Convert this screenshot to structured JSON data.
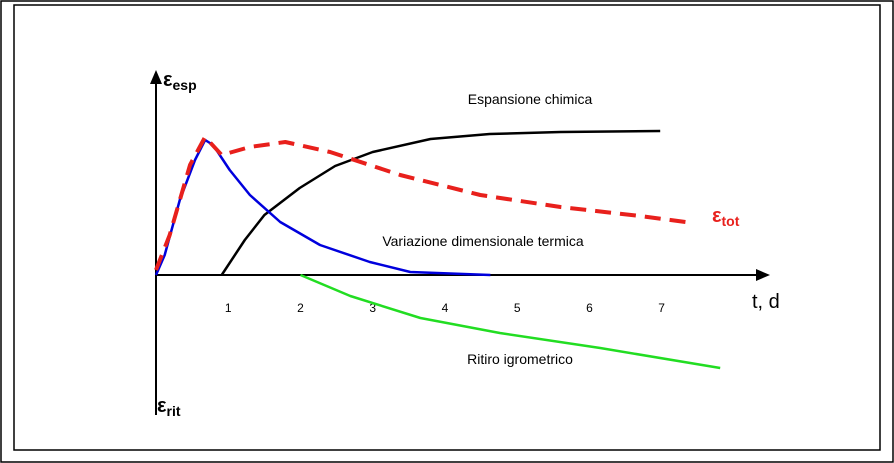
{
  "chart_data": {
    "type": "line",
    "y_label_top": {
      "main": "ε",
      "sub": "esp"
    },
    "y_label_bottom": {
      "main": "ε",
      "sub": "rit"
    },
    "x_label": "t, d",
    "xlim": [
      0,
      8.5
    ],
    "ylim": [
      -14,
      20.5
    ],
    "xticks": [
      1,
      2,
      3,
      4,
      5,
      6,
      7
    ],
    "grid": false,
    "series": [
      {
        "name": "Espansione chimica",
        "color": "#000000",
        "dash": false,
        "x": [
          0.91,
          1.23,
          1.5,
          1.99,
          2.48,
          3.0,
          3.8,
          4.62,
          5.6,
          6.98
        ],
        "values": [
          0,
          3.5,
          6,
          8.7,
          10.9,
          12.3,
          13.6,
          14.1,
          14.3,
          14.4
        ]
      },
      {
        "name": "Variazione dimensionale termica",
        "color": "#0000dd",
        "dash": false,
        "x": [
          0,
          0.12,
          0.33,
          0.54,
          0.68,
          0.79,
          1.02,
          1.3,
          1.72,
          2.27,
          2.96,
          3.52,
          4.63
        ],
        "values": [
          0,
          2,
          7.5,
          11.5,
          13.5,
          13,
          10.5,
          8,
          5.3,
          3,
          1.3,
          0.3,
          0
        ]
      },
      {
        "name": "ε",
        "name_sub": "tot",
        "color": "#e8201c",
        "dash": true,
        "x": [
          0,
          0.19,
          0.47,
          0.68,
          0.91,
          1.3,
          1.79,
          2.41,
          3.38,
          4.49,
          5.6,
          6.7,
          7.33
        ],
        "values": [
          0.5,
          4,
          11,
          13.8,
          12,
          12.8,
          13.3,
          12.3,
          10,
          8,
          6.8,
          5.9,
          5.3
        ]
      },
      {
        "name": "Ritiro igrometrico",
        "color": "#22dd22",
        "dash": false,
        "x": [
          2,
          2.69,
          3.66,
          4.76,
          6.15,
          7.81
        ],
        "values": [
          0,
          -2.1,
          -4.3,
          -5.8,
          -7.3,
          -9.3
        ]
      }
    ]
  }
}
